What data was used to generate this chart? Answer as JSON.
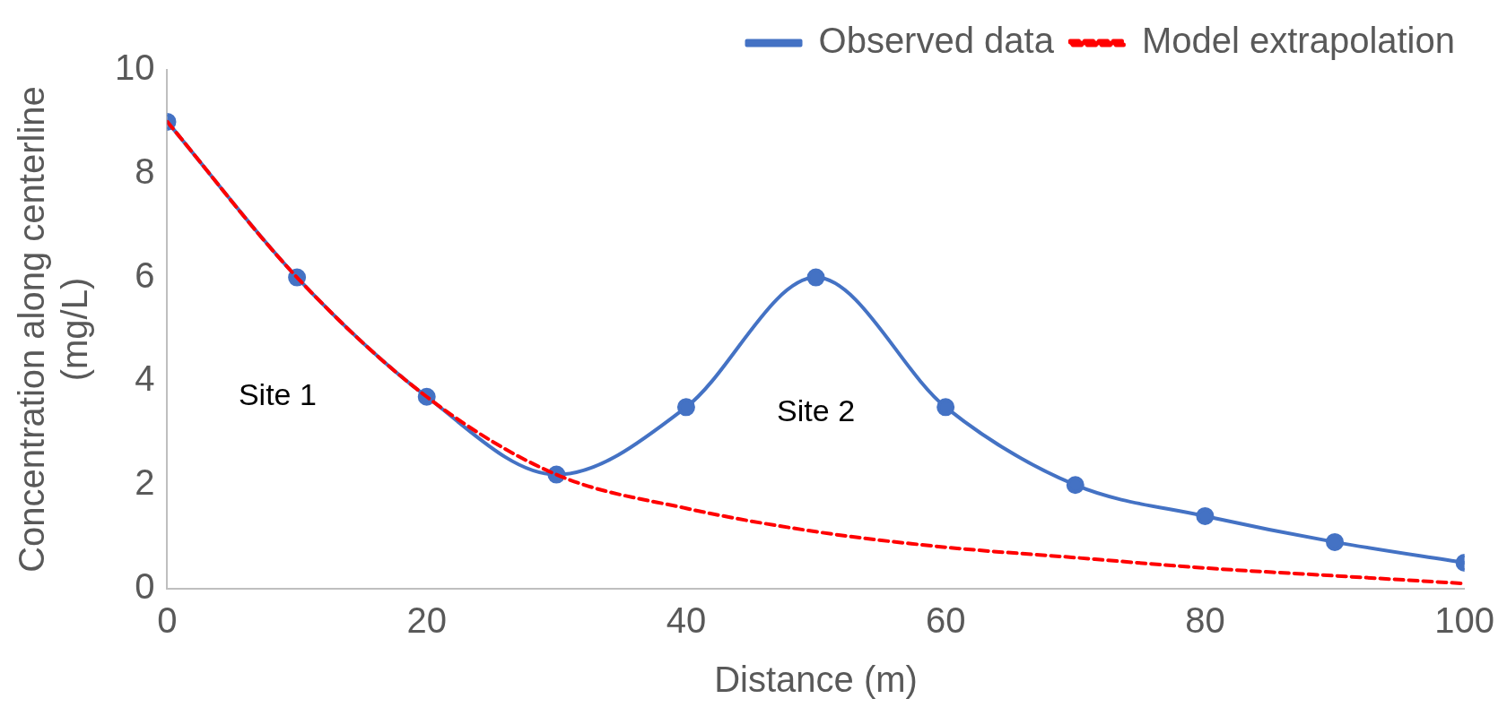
{
  "chart_data": {
    "type": "line",
    "xlabel": "Distance (m)",
    "ylabel": "Concentration along centerline (mg/L)",
    "x": [
      0,
      10,
      20,
      30,
      40,
      50,
      60,
      70,
      80,
      90,
      100
    ],
    "series": [
      {
        "name": "Observed data",
        "color": "#4472c4",
        "marker": "circle",
        "line_style": "solid",
        "values": [
          9,
          6,
          3.7,
          2.2,
          3.5,
          6,
          3.5,
          2,
          1.4,
          0.9,
          0.5
        ]
      },
      {
        "name": "Model extrapolation",
        "color": "#ff0000",
        "marker": "none",
        "line_style": "dashed",
        "values": [
          9,
          6,
          3.7,
          2.2,
          1.55,
          1.1,
          0.8,
          0.6,
          0.4,
          0.25,
          0.1
        ]
      }
    ],
    "xlim": [
      0,
      100
    ],
    "xticks": [
      0,
      20,
      40,
      60,
      80,
      100
    ],
    "ylim": [
      0,
      10
    ],
    "yticks": [
      0,
      2,
      4,
      6,
      8,
      10
    ],
    "grid": false,
    "legend": "top right",
    "annotations": [
      "Site 1",
      "Site 2"
    ]
  }
}
